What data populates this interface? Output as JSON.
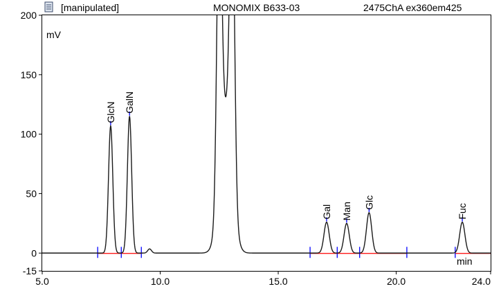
{
  "header": {
    "status": "[manipulated]",
    "sample": "MONOMIX B633-03",
    "channel": "2475ChA ex360em425"
  },
  "chart_data": {
    "type": "line",
    "x_unit": "min",
    "y_unit": "mV",
    "xlim": [
      5.0,
      24.0
    ],
    "ylim": [
      -15,
      200
    ],
    "x_ticks": [
      "5.0",
      "10.0",
      "15.0",
      "20.0",
      "24.0"
    ],
    "x_tick_values": [
      5.0,
      10.0,
      15.0,
      20.0,
      24.0
    ],
    "y_ticks": [
      "200",
      "150",
      "100",
      "50",
      "0",
      "-15"
    ],
    "y_tick_values": [
      200,
      150,
      100,
      50,
      0,
      -15
    ],
    "peaks": [
      {
        "name": "GlcN",
        "rt": 7.9,
        "height": 107,
        "width": 0.09
      },
      {
        "name": "GalN",
        "rt": 8.7,
        "height": 115,
        "width": 0.09
      },
      {
        "name": "",
        "rt": 9.55,
        "height": 3.5,
        "width": 0.08
      },
      {
        "name": "",
        "rt": 12.5,
        "height": 250,
        "width": 0.1
      },
      {
        "name": "",
        "rt": 13.05,
        "height": 250,
        "width": 0.1
      },
      {
        "name": "",
        "rt": 12.78,
        "height": 120,
        "width": 0.26
      },
      {
        "name": "Gal",
        "rt": 17.05,
        "height": 26,
        "width": 0.11
      },
      {
        "name": "Man",
        "rt": 17.9,
        "height": 25,
        "width": 0.11
      },
      {
        "name": "Glc",
        "rt": 18.85,
        "height": 34,
        "width": 0.11
      },
      {
        "name": "Fuc",
        "rt": 22.8,
        "height": 26,
        "width": 0.11
      }
    ],
    "integration_markers": [
      7.35,
      8.35,
      9.2,
      16.35,
      17.5,
      18.45,
      20.45,
      22.5
    ],
    "baseline_segments": [
      [
        7.35,
        9.2
      ],
      [
        16.35,
        20.45
      ],
      [
        22.5,
        24.0
      ]
    ],
    "colors": {
      "trace": "#1a1a1a",
      "baseline": "#ff0000",
      "marker": "#0000ff",
      "peak_tick": "#0000ff"
    }
  }
}
